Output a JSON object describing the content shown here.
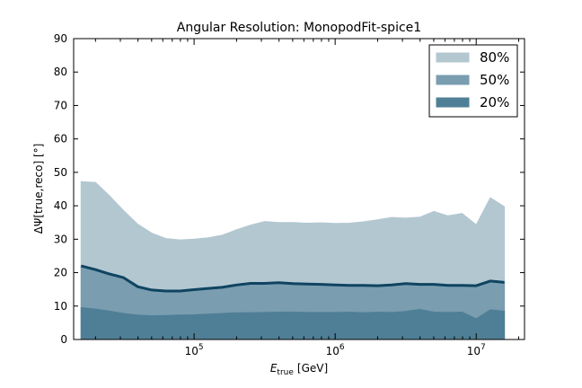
{
  "chart_data": {
    "type": "area",
    "title": "Angular Resolution: MonopodFit-spice1",
    "xlabel_main": "E",
    "xlabel_sub": "true",
    "xlabel_unit": "[GeV]",
    "ylabel": "ΔΨ[true,reco] [°]",
    "x_scale": "log",
    "xlim": [
      14000,
      22000000
    ],
    "ylim": [
      0,
      90
    ],
    "yticks": [
      0,
      10,
      20,
      30,
      40,
      50,
      60,
      70,
      80,
      90
    ],
    "xticks": [
      {
        "value": 100000,
        "base": "10",
        "exp": "5"
      },
      {
        "value": 1000000,
        "base": "10",
        "exp": "6"
      },
      {
        "value": 10000000,
        "base": "10",
        "exp": "7"
      }
    ],
    "x": [
      15800,
      20000,
      25100,
      31600,
      39800,
      50100,
      63100,
      79400,
      100000,
      125900,
      158500,
      199500,
      251200,
      316200,
      398100,
      501200,
      631000,
      794300,
      1000000,
      1258900,
      1584900,
      1995300,
      2511900,
      3162300,
      3981100,
      5011900,
      6309600,
      7943300,
      10000000,
      12589300,
      15848900
    ],
    "series": [
      {
        "name": "80%",
        "color": "#b3c7d1",
        "values": [
          47.2,
          47.0,
          43.0,
          38.6,
          34.5,
          31.8,
          30.2,
          29.8,
          30.0,
          30.4,
          31.2,
          32.8,
          34.2,
          35.3,
          35.0,
          35.0,
          34.8,
          34.9,
          34.7,
          34.8,
          35.2,
          35.8,
          36.5,
          36.3,
          36.6,
          38.3,
          37.0,
          37.7,
          34.3,
          42.4,
          39.7
        ]
      },
      {
        "name": "50%",
        "color": "#7a9db0",
        "values": [
          22.0,
          20.9,
          19.6,
          18.5,
          15.8,
          14.8,
          14.5,
          14.5,
          14.9,
          15.3,
          15.6,
          16.3,
          16.8,
          16.8,
          17.0,
          16.7,
          16.6,
          16.5,
          16.3,
          16.2,
          16.2,
          16.1,
          16.3,
          16.7,
          16.5,
          16.5,
          16.2,
          16.2,
          16.1,
          17.5,
          17.1
        ]
      },
      {
        "name": "20%",
        "color": "#4f7f96",
        "values": [
          9.5,
          9.1,
          8.5,
          7.8,
          7.3,
          7.1,
          7.2,
          7.3,
          7.4,
          7.6,
          7.8,
          8.0,
          8.0,
          8.1,
          8.2,
          8.2,
          8.1,
          8.1,
          8.1,
          8.2,
          8.0,
          8.2,
          8.1,
          8.4,
          9.0,
          8.2,
          8.1,
          8.2,
          6.2,
          8.9,
          8.5
        ]
      }
    ],
    "median_line": {
      "color": "#0f4461"
    },
    "legend": {
      "placement": "top-right"
    },
    "grid": false
  }
}
